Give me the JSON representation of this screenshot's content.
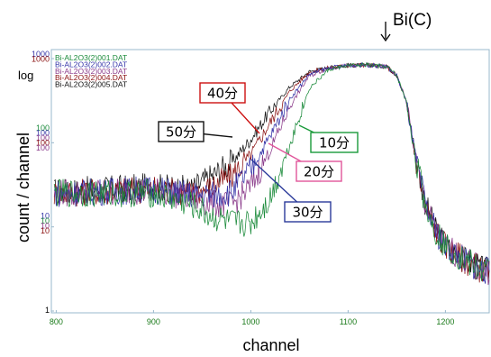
{
  "chart_data": {
    "type": "line",
    "xlabel": "channel",
    "ylabel": "count / channel",
    "scale_label": "log",
    "xlim": [
      795,
      1245
    ],
    "ylim": [
      1,
      1000
    ],
    "yscale": "log",
    "x_ticks": [
      "800",
      "900",
      "1000",
      "1100",
      "1200"
    ],
    "y_ticks": [
      {
        "labels": [
          "1000",
          "1000"
        ],
        "colors": [
          "#3535a8",
          "#8a1010"
        ]
      },
      {
        "labels": [
          "100",
          "100",
          "100",
          "100",
          "100"
        ],
        "colors": [
          "#1a8a3a",
          "#3535a8",
          "#8a3a8a",
          "#8a1010",
          "#8a3a8a"
        ]
      },
      {
        "labels": [
          "10",
          "10",
          "10",
          "10"
        ],
        "colors": [
          "#3535a8",
          "#1a8a3a",
          "#8a3a8a",
          "#8a1010"
        ]
      },
      {
        "labels": [
          "1"
        ],
        "colors": [
          "#000000"
        ]
      }
    ],
    "peak_label": "Bi(C)",
    "peak_channel": 1140,
    "series": [
      {
        "name": "Bi-AL2O3(2)005.DAT",
        "color": "#111111",
        "time_label": "50分",
        "x": [
          800,
          900,
          940,
          960,
          980,
          1000,
          1020,
          1040,
          1060,
          1080,
          1100,
          1120,
          1140,
          1150,
          1160,
          1170,
          1180,
          1190,
          1200,
          1220,
          1240
        ],
        "y": [
          26,
          30,
          28,
          40,
          58,
          110,
          240,
          460,
          700,
          780,
          830,
          840,
          800,
          630,
          310,
          62,
          18,
          9,
          6,
          4,
          3
        ]
      },
      {
        "name": "Bi-AL2O3(2)004.DAT",
        "color": "#8a1010",
        "time_label": "40分",
        "x": [
          800,
          900,
          940,
          960,
          980,
          1000,
          1020,
          1040,
          1060,
          1080,
          1100,
          1120,
          1140,
          1150,
          1160,
          1170,
          1180,
          1190,
          1200,
          1220,
          1240
        ],
        "y": [
          25,
          28,
          25,
          30,
          40,
          72,
          175,
          410,
          690,
          780,
          830,
          840,
          800,
          630,
          300,
          60,
          17,
          9,
          6,
          4,
          3
        ]
      },
      {
        "name": "Bi-AL2O3(2)003.DAT",
        "color": "#8a3a8a",
        "time_label": "20分",
        "x": [
          800,
          900,
          940,
          960,
          980,
          1000,
          1020,
          1040,
          1060,
          1080,
          1100,
          1120,
          1140,
          1150,
          1160,
          1170,
          1180,
          1190,
          1200,
          1220,
          1240
        ],
        "y": [
          25,
          27,
          22,
          19,
          18,
          30,
          82,
          270,
          620,
          770,
          830,
          840,
          800,
          630,
          300,
          60,
          17,
          9,
          6,
          4,
          3
        ]
      },
      {
        "name": "Bi-AL2O3(2)002.DAT",
        "color": "#3535a8",
        "time_label": "30分",
        "x": [
          800,
          900,
          940,
          960,
          980,
          1000,
          1020,
          1040,
          1060,
          1080,
          1100,
          1120,
          1140,
          1150,
          1160,
          1170,
          1180,
          1190,
          1200,
          1220,
          1240
        ],
        "y": [
          25,
          28,
          24,
          24,
          26,
          48,
          120,
          330,
          650,
          775,
          830,
          840,
          800,
          630,
          300,
          60,
          17,
          9,
          6,
          4,
          3
        ]
      },
      {
        "name": "Bi-AL2O3(2)001.DAT",
        "color": "#1a8a3a",
        "time_label": "10分",
        "x": [
          800,
          900,
          940,
          960,
          980,
          1000,
          1020,
          1040,
          1060,
          1080,
          1100,
          1120,
          1140,
          1150,
          1160,
          1170,
          1180,
          1190,
          1200,
          1220,
          1240
        ],
        "y": [
          25,
          25,
          18,
          13,
          11,
          11,
          22,
          95,
          440,
          740,
          830,
          840,
          800,
          630,
          300,
          60,
          17,
          9,
          6,
          4,
          3
        ]
      }
    ],
    "annotations": [
      {
        "text": "40分",
        "color": "#cc1111"
      },
      {
        "text": "50分",
        "color": "#111111"
      },
      {
        "text": "10分",
        "color": "#1a9a3a"
      },
      {
        "text": "20分",
        "color": "#e0559a"
      },
      {
        "text": "30分",
        "color": "#2a3a9a"
      }
    ]
  }
}
